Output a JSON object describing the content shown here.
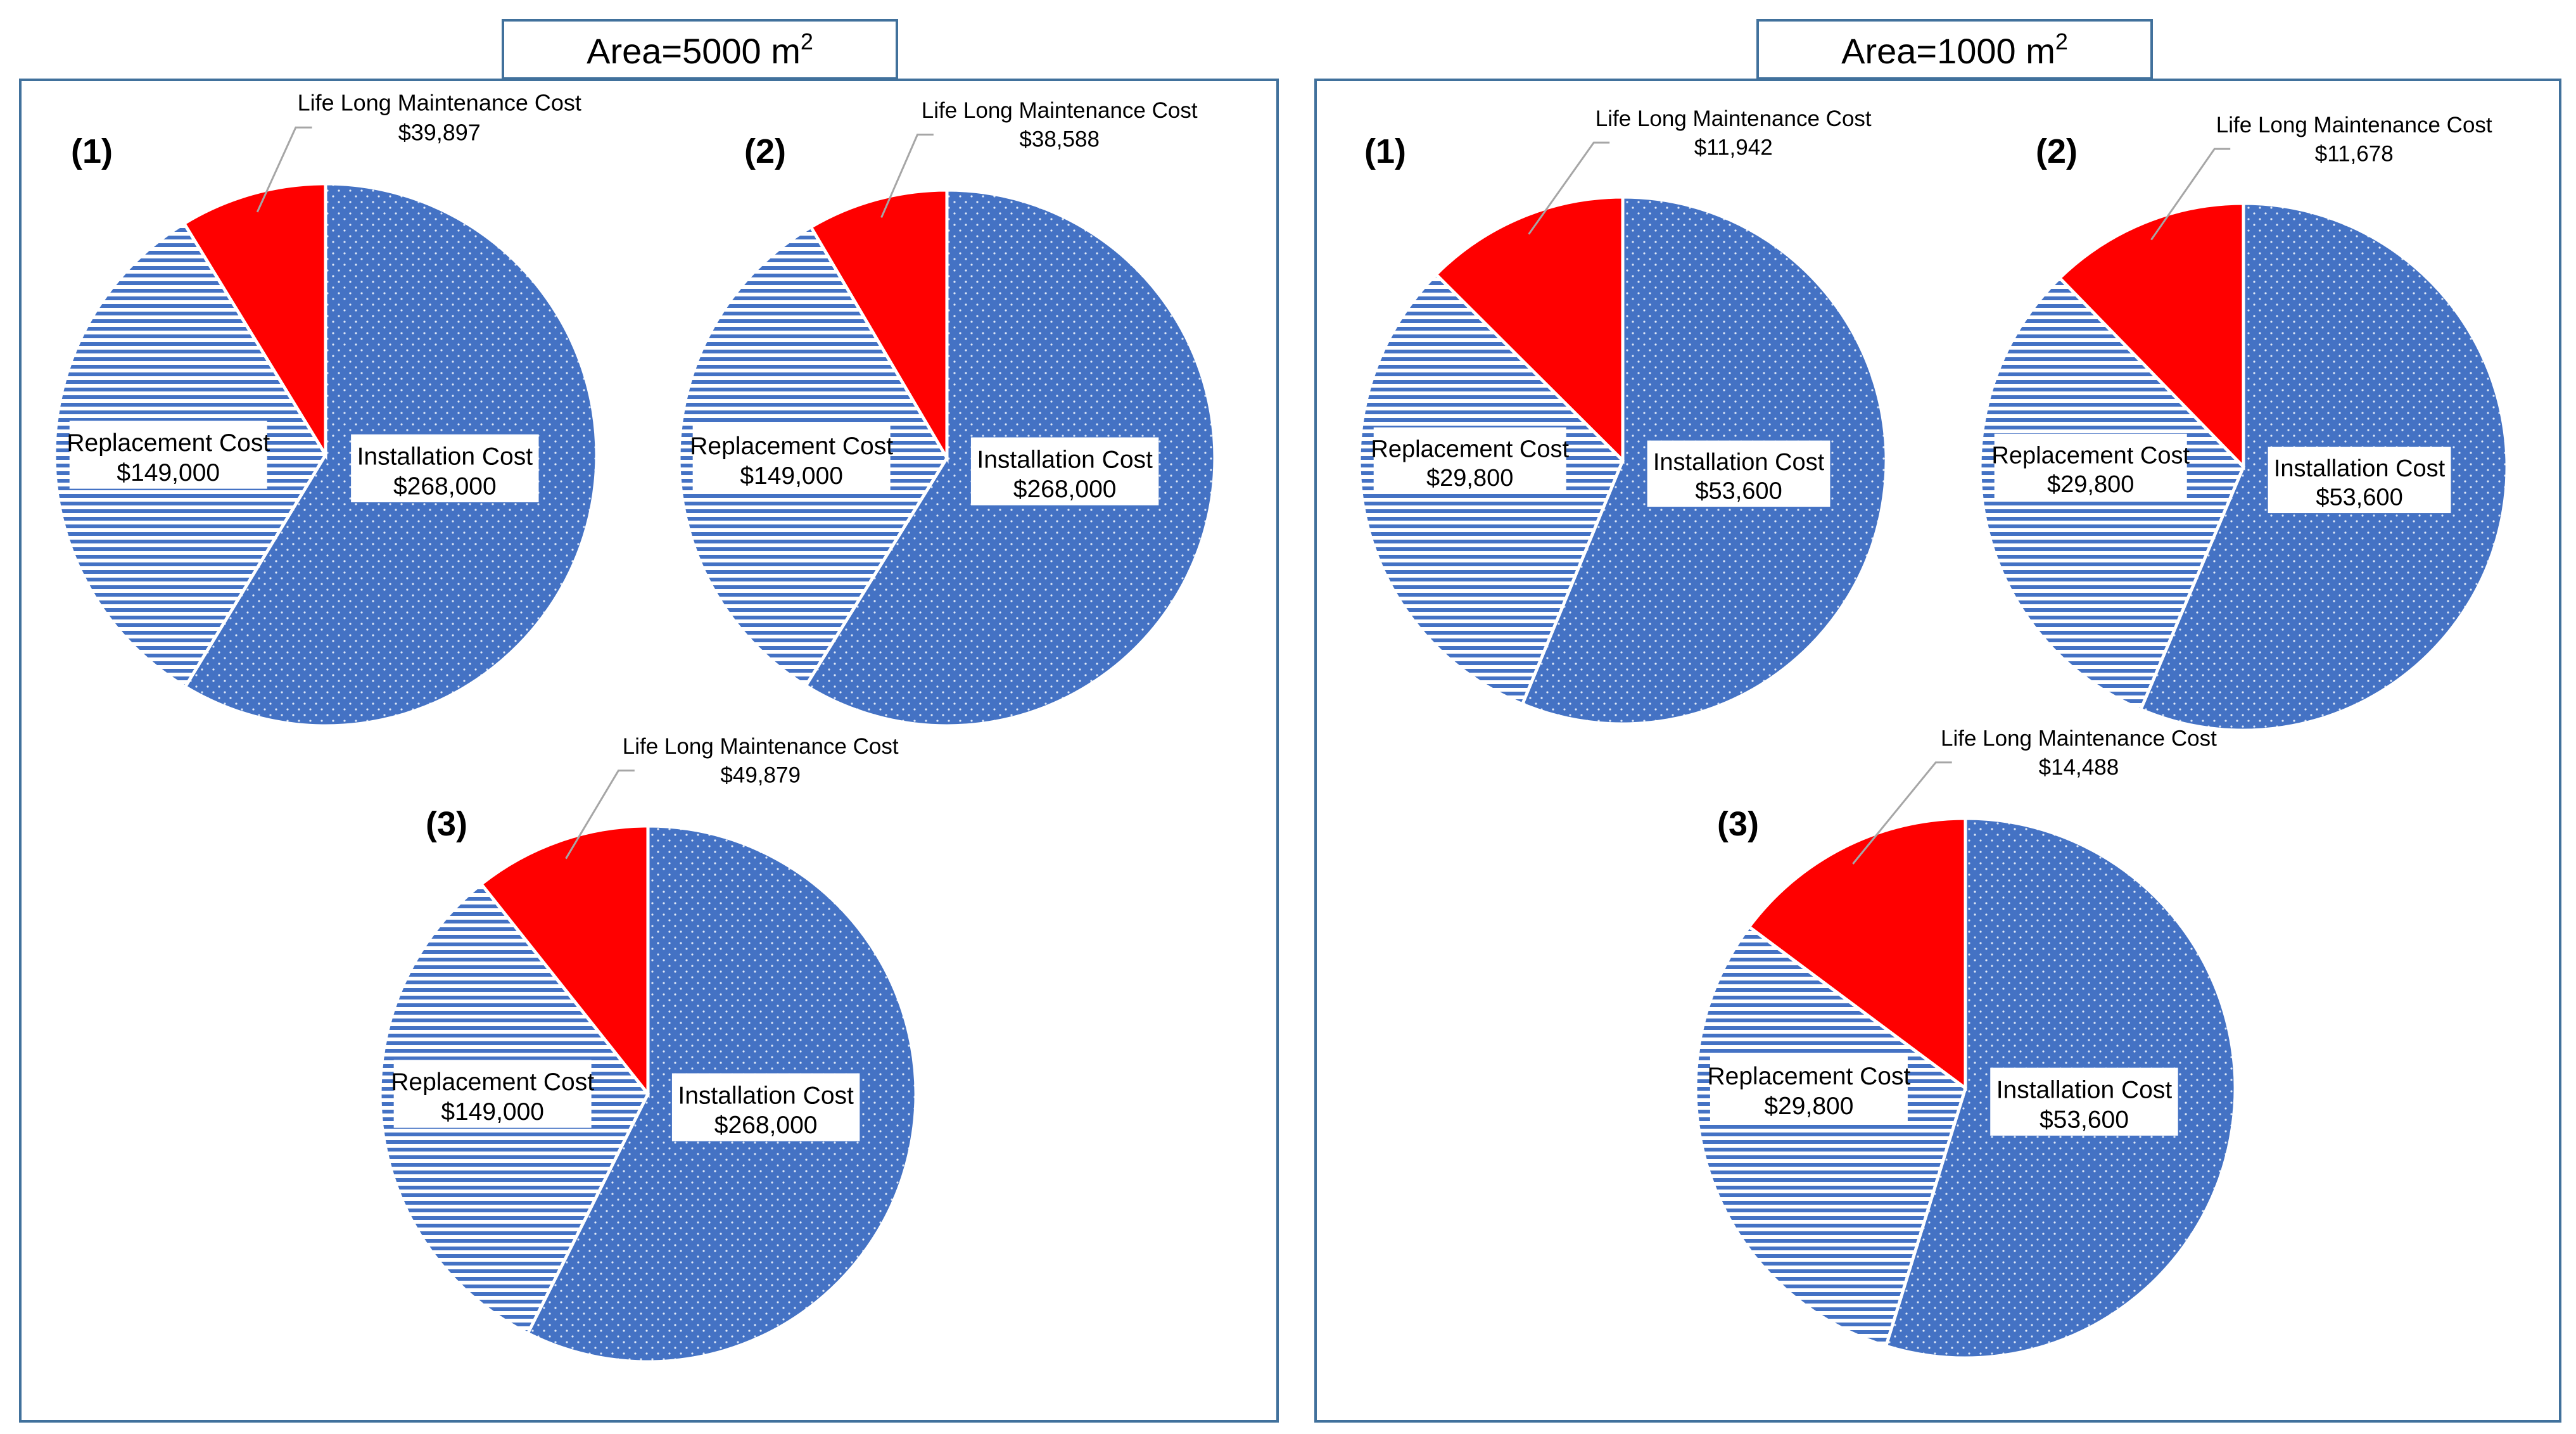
{
  "chart_data": [
    {
      "group_title": "Area=5000 m",
      "group_title_sup": "2",
      "type": "pie",
      "charts": [
        {
          "label": "(1)",
          "slices": [
            {
              "name": "Installation Cost",
              "value": 268000,
              "value_label": "$268,000"
            },
            {
              "name": "Replacement Cost",
              "value": 149000,
              "value_label": "$149,000"
            },
            {
              "name": "Life Long Maintenance Cost",
              "value": 39897,
              "value_label": "$39,897"
            }
          ]
        },
        {
          "label": "(2)",
          "slices": [
            {
              "name": "Installation Cost",
              "value": 268000,
              "value_label": "$268,000"
            },
            {
              "name": "Replacement Cost",
              "value": 149000,
              "value_label": "$149,000"
            },
            {
              "name": "Life Long Maintenance Cost",
              "value": 38588,
              "value_label": "$38,588"
            }
          ]
        },
        {
          "label": "(3)",
          "slices": [
            {
              "name": "Installation Cost",
              "value": 268000,
              "value_label": "$268,000"
            },
            {
              "name": "Replacement Cost",
              "value": 149000,
              "value_label": "$149,000"
            },
            {
              "name": "Life Long Maintenance Cost",
              "value": 49879,
              "value_label": "$49,879"
            }
          ]
        }
      ]
    },
    {
      "group_title": "Area=1000 m",
      "group_title_sup": "2",
      "type": "pie",
      "charts": [
        {
          "label": "(1)",
          "slices": [
            {
              "name": "Installation Cost",
              "value": 53600,
              "value_label": "$53,600"
            },
            {
              "name": "Replacement Cost",
              "value": 29800,
              "value_label": "$29,800"
            },
            {
              "name": "Life Long Maintenance Cost",
              "value": 11942,
              "value_label": "$11,942"
            }
          ]
        },
        {
          "label": "(2)",
          "slices": [
            {
              "name": "Installation Cost",
              "value": 53600,
              "value_label": "$53,600"
            },
            {
              "name": "Replacement Cost",
              "value": 29800,
              "value_label": "$29,800"
            },
            {
              "name": "Life Long Maintenance Cost",
              "value": 11678,
              "value_label": "$11,678"
            }
          ]
        },
        {
          "label": "(3)",
          "slices": [
            {
              "name": "Installation Cost",
              "value": 53600,
              "value_label": "$53,600"
            },
            {
              "name": "Replacement Cost",
              "value": 29800,
              "value_label": "$29,800"
            },
            {
              "name": "Life Long Maintenance Cost",
              "value": 14488,
              "value_label": "$14,488"
            }
          ]
        }
      ]
    }
  ],
  "colors": {
    "installation": "#4472c4",
    "replacement_fill": "#ffffff",
    "replacement_stripe": "#4472c4",
    "maintenance": "#ff0000",
    "panel_border": "#41719c",
    "leader_line": "#a6a6a6"
  }
}
